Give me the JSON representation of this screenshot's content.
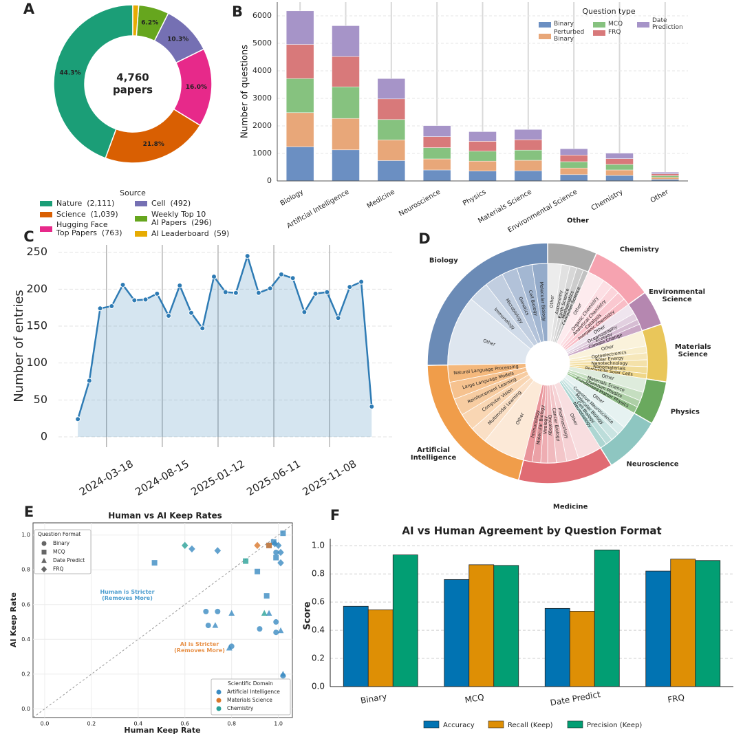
{
  "chart_data": [
    {
      "type": "donut",
      "panel": "A",
      "center_value": "4,760",
      "center_label": "papers",
      "legend_title": "Source",
      "categories": [
        "Nature  (2,111)",
        "Science  (1,039)",
        "Hugging Face\nTop Papers  (763)",
        "Cell  (492)",
        "Weekly Top 10\nAI Papers  (296)",
        "AI Leaderboard  (59)"
      ],
      "values": [
        44.3,
        21.8,
        16.0,
        10.3,
        6.2,
        1.2
      ],
      "value_labels": [
        "44.3%",
        "21.8%",
        "16.0%",
        "10.3%",
        "6.2%",
        null
      ],
      "colors": [
        "#1b9e77",
        "#d95f02",
        "#e7298a",
        "#7570b3",
        "#66a61e",
        "#e6ab02"
      ]
    },
    {
      "type": "stacked-bar",
      "panel": "B",
      "ylabel": "Number of questions",
      "legend_title": "Question type",
      "categories": [
        "Biology",
        "Artificial Intelligence",
        "Medicine",
        "Neuroscience",
        "Physics",
        "Materials Science",
        "Environmental Science",
        "Chemistry",
        "Other"
      ],
      "series": [
        {
          "name": "Binary",
          "color": "#6b8fc2",
          "values": [
            1240,
            1130,
            740,
            400,
            360,
            370,
            230,
            200,
            60
          ]
        },
        {
          "name": "Perturbed\nBinary",
          "color": "#e8a779",
          "values": [
            1240,
            1140,
            750,
            400,
            360,
            380,
            240,
            200,
            70
          ]
        },
        {
          "name": "MCQ",
          "color": "#86c27f",
          "values": [
            1240,
            1150,
            740,
            410,
            360,
            370,
            230,
            200,
            60
          ]
        },
        {
          "name": "FRQ",
          "color": "#d8797a",
          "values": [
            1240,
            1100,
            750,
            400,
            360,
            380,
            240,
            210,
            70
          ]
        },
        {
          "name": "Date\nPrediction",
          "color": "#a694c8",
          "values": [
            1220,
            1120,
            740,
            400,
            350,
            370,
            230,
            200,
            60
          ]
        }
      ],
      "ylim": [
        0,
        6500
      ],
      "yticks": [
        0,
        1000,
        2000,
        3000,
        4000,
        5000,
        6000
      ],
      "grid": true
    },
    {
      "type": "area-line",
      "panel": "C",
      "ylabel": "Number of entries",
      "color": "#2e7bb4",
      "x": [
        "2024-01-01",
        "2024-02-01",
        "2024-03-01",
        "2024-04-01",
        "2024-05-01",
        "2024-06-01",
        "2024-07-01",
        "2024-08-01",
        "2024-09-01",
        "2024-10-01",
        "2024-11-01",
        "2024-12-01",
        "2025-01-01",
        "2025-02-01",
        "2025-03-01",
        "2025-04-01",
        "2025-05-01",
        "2025-06-01",
        "2025-07-01",
        "2025-08-01",
        "2025-09-01",
        "2025-10-01",
        "2025-11-01",
        "2025-12-01",
        "2026-01-01",
        "2026-02-01",
        "2026-03-01"
      ],
      "values": [
        24,
        76,
        174,
        177,
        206,
        185,
        186,
        194,
        164,
        205,
        168,
        147,
        217,
        196,
        195,
        245,
        195,
        201,
        220,
        215,
        169,
        194,
        196,
        161,
        203,
        210,
        41
      ],
      "xlim": [
        "2023-11-10",
        "2026-04-25"
      ],
      "xticks": [
        "2024-03-18",
        "2024-08-15",
        "2025-01-12",
        "2025-06-11",
        "2025-11-08"
      ],
      "ylim": [
        -14,
        260
      ],
      "yticks": [
        0,
        50,
        100,
        150,
        200,
        250
      ],
      "grid": true
    },
    {
      "type": "sunburst",
      "panel": "D",
      "categories": [
        "Other",
        "Chemistry",
        "Environmental\nScience",
        "Materials\nScience",
        "Physics",
        "Neuroscience",
        "Medicine",
        "Artificial\nIntelligence",
        "Biology"
      ],
      "values": [
        24,
        30,
        17,
        28,
        21,
        28,
        46,
        75,
        91
      ],
      "colors": [
        "#a9a9a9",
        "#f6a3b0",
        "#b587b0",
        "#e9c65a",
        "#6aa95e",
        "#8ec6c1",
        "#e06b73",
        "#f09d4a",
        "#6b8bb6"
      ],
      "subcategories": [
        {
          "labels": [
            "Other",
            "Astronomy",
            "Earth Science",
            "Mathematics",
            "Computer Science"
          ],
          "values": [
            8,
            5,
            4,
            4,
            3
          ]
        },
        {
          "labels": [
            "Other",
            "Organic Chemistry",
            "Analytical Chemistry",
            "Catalysis",
            "Inorganic Chemistry"
          ],
          "values": [
            10,
            6,
            5,
            5,
            4
          ]
        },
        {
          "labels": [
            "Other",
            "Oceanography",
            "Ecology",
            "Climate Change"
          ],
          "values": [
            6,
            4,
            3,
            4
          ]
        },
        {
          "labels": [
            "Other",
            "Optoelectronics",
            "Solar Energy",
            "Nanotechnology",
            "Nanomaterials",
            "Perovskite Solar Cells"
          ],
          "values": [
            9,
            4,
            4,
            4,
            4,
            3
          ]
        },
        {
          "labels": [
            "Other",
            "Materials Science",
            "Quantum Physics",
            "Condensed Matter Physics"
          ],
          "values": [
            8,
            5,
            4,
            4
          ]
        },
        {
          "labels": [
            "Other",
            "Cognitive Neuroscience",
            "Molecular Biology",
            "Cell Biology",
            "Neurobiology"
          ],
          "values": [
            10,
            5,
            5,
            4,
            4
          ]
        },
        {
          "labels": [
            "Other",
            "Pharmacology",
            "Cancer Biology",
            "Oncology",
            "Virology",
            "Molecular Biology",
            "Immunology"
          ],
          "values": [
            14,
            7,
            6,
            5,
            4,
            5,
            5
          ]
        },
        {
          "labels": [
            "Other",
            "Multimodal Learning",
            "Computer Vision",
            "Reinforcement Learning",
            "Large Language Models",
            "Natural Language Processing"
          ],
          "values": [
            25,
            10,
            10,
            10,
            10,
            10
          ]
        },
        {
          "labels": [
            "Other",
            "Immunology",
            "Microbiology",
            "Genetics",
            "Cell Biology",
            "Molecular Biology"
          ],
          "values": [
            41,
            12,
            11,
            9,
            9,
            9
          ]
        }
      ]
    },
    {
      "type": "scatter",
      "panel": "E",
      "title": "Human vs AI Keep Rates",
      "xlabel": "Human Keep Rate",
      "ylabel": "AI Keep Rate",
      "format_legend_title": "Question Format",
      "formats": [
        "Binary",
        "MCQ",
        "Date Predict",
        "FRQ"
      ],
      "domain_legend_title": "Scientific Domain",
      "annotations": [
        {
          "text": "Human is Stricter\n(Removes More)",
          "color": "#4f9fd0"
        },
        {
          "text": "AI is Stricter\n(Removes More)",
          "color": "#e8924a"
        }
      ],
      "series": [
        {
          "name": "Artificial Intelligence",
          "color": "#3b8bc2",
          "x": [
            0.47,
            0.63,
            0.74,
            0.69,
            0.74,
            0.7,
            0.73,
            0.8,
            0.8,
            0.79,
            0.92,
            0.91,
            0.95,
            0.96,
            0.96,
            0.98,
            1.02,
            0.985,
            1.0,
            1.01,
            1.01,
            0.99,
            0.99,
            0.99,
            1.01,
            0.99,
            1.02,
            1.02
          ],
          "y": [
            0.84,
            0.92,
            0.91,
            0.56,
            0.56,
            0.48,
            0.48,
            0.55,
            0.36,
            0.35,
            0.46,
            0.79,
            0.65,
            0.55,
            0.94,
            0.96,
            1.01,
            0.95,
            0.94,
            0.9,
            0.84,
            0.87,
            0.9,
            0.5,
            0.45,
            0.44,
            0.2,
            0.19
          ],
          "format": [
            1,
            3,
            3,
            0,
            0,
            0,
            2,
            2,
            0,
            2,
            0,
            1,
            1,
            2,
            1,
            1,
            1,
            3,
            3,
            3,
            3,
            1,
            0,
            0,
            2,
            0,
            2,
            0
          ]
        },
        {
          "name": "Materials Science",
          "color": "#d9772b",
          "x": [
            0.91,
            0.96
          ],
          "y": [
            0.94,
            0.94
          ],
          "format": [
            3,
            1
          ]
        },
        {
          "name": "Chemistry",
          "color": "#2aa198",
          "x": [
            0.6,
            0.86,
            0.94
          ],
          "y": [
            0.94,
            0.85,
            0.55
          ],
          "format": [
            3,
            1,
            2
          ]
        }
      ],
      "xlim": [
        -0.05,
        1.06
      ],
      "ylim": [
        -0.05,
        1.07
      ],
      "xticks": [
        {
          "value": 0,
          "label": "0.0"
        },
        0.2,
        0.4,
        0.6,
        0.8,
        {
          "value": 1,
          "label": "1.0"
        }
      ],
      "yticks": [
        {
          "value": 0,
          "label": "0.0"
        },
        0.2,
        0.4,
        0.6,
        0.8,
        {
          "value": 1,
          "label": "1.0"
        }
      ],
      "grid": true
    },
    {
      "type": "grouped-bar",
      "panel": "F",
      "title": "AI vs Human Agreement by Question Format",
      "ylabel": "Score",
      "categories": [
        "Binary",
        "MCQ",
        "Date Predict",
        "FRQ"
      ],
      "series": [
        {
          "name": "Accuracy",
          "color": "#0173b2",
          "values": [
            0.57,
            0.76,
            0.555,
            0.82
          ]
        },
        {
          "name": "Recall (Keep)",
          "color": "#de8f05",
          "values": [
            0.545,
            0.865,
            0.535,
            0.905
          ]
        },
        {
          "name": "Precision (Keep)",
          "color": "#029e73",
          "values": [
            0.935,
            0.86,
            0.97,
            0.895
          ]
        }
      ],
      "ylim": [
        0,
        1.05
      ],
      "yticks": [
        {
          "value": 0,
          "label": "0.0"
        },
        0.2,
        0.4,
        0.6,
        0.8,
        {
          "value": 1,
          "label": "1.0"
        }
      ],
      "grid": true
    }
  ]
}
